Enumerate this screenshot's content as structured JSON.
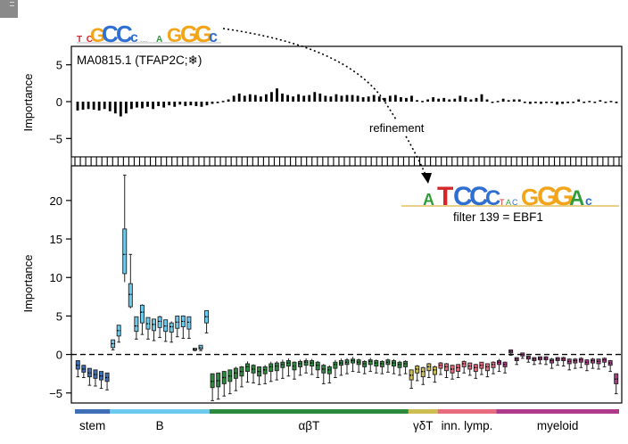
{
  "chart_data": [
    {
      "type": "box",
      "panel": "top",
      "title": "MA0815.1 (TFAP2C;",
      "title_symbol": "❄",
      "title_close": ")",
      "ylabel": "Importance",
      "ylim": [
        -7.5,
        7.5
      ],
      "yticks": [
        -5,
        0,
        5
      ],
      "values": [
        -1.2,
        -1.1,
        -1.0,
        -1.1,
        -1.2,
        -1.0,
        -1.3,
        -1.6,
        -2.0,
        -1.6,
        -1.0,
        -0.8,
        -0.9,
        -0.7,
        -1.0,
        -0.6,
        -0.8,
        -0.5,
        -0.7,
        -0.4,
        -0.6,
        -0.5,
        -0.6,
        -0.7,
        -0.5,
        -0.3,
        -0.2,
        0.1,
        0.3,
        0.8,
        1.1,
        0.8,
        1.0,
        0.9,
        0.7,
        1.0,
        1.3,
        1.8,
        1.1,
        0.9,
        0.7,
        1.0,
        0.8,
        0.9,
        1.3,
        1.1,
        0.8,
        0.7,
        1.0,
        0.8,
        0.9,
        0.9,
        0.8,
        0.6,
        0.7,
        0.9,
        0.7,
        0.5,
        0.8,
        0.9,
        0.6,
        0.5,
        0.8,
        0.2,
        0.1,
        0.3,
        0.6,
        0.4,
        0.5,
        0.3,
        0.4,
        0.8,
        0.6,
        0.3,
        0.5,
        1.0,
        0.3,
        0.0,
        0.1,
        0.4,
        0.2,
        0.3,
        0.3,
        -0.1,
        -0.3,
        -0.2,
        -0.3,
        -0.1,
        0.0,
        -0.4,
        -0.3,
        -0.2,
        0.0,
        0.3,
        0.0,
        0.1,
        0.0,
        0.2,
        -0.1,
        0.1,
        -0.2
      ]
    },
    {
      "type": "box",
      "panel": "bottom",
      "ylabel": "Importance",
      "ylim": [
        -6.3,
        24.5
      ],
      "yticks": [
        -5,
        0,
        5,
        10,
        15,
        20
      ],
      "baseline": 0,
      "groups": [
        {
          "name": "stem",
          "color": "#3f6fb6",
          "boxes": [
            [
              -1.4,
              -0.8,
              -1.9,
              -2.9
            ],
            [
              -1.9,
              -1.4,
              -2.3,
              -3.0
            ],
            [
              -2.4,
              -1.8,
              -2.9,
              -4.0
            ],
            [
              -2.6,
              -2.0,
              -3.1,
              -4.1
            ],
            [
              -2.8,
              -2.2,
              -3.3,
              -4.4
            ],
            [
              -3.0,
              -2.4,
              -3.5,
              -4.6
            ]
          ]
        },
        {
          "name": "B",
          "color": "#6ccbed",
          "boxes": [
            [
              1.4,
              1.9,
              0.9,
              0.6
            ],
            [
              3.1,
              3.8,
              2.4,
              1.6
            ],
            [
              13.0,
              16.3,
              10.5,
              23.3
            ],
            [
              7.8,
              9.2,
              6.2,
              13.0
            ],
            [
              3.7,
              4.9,
              3.0,
              2.0
            ],
            [
              5.5,
              6.4,
              4.1,
              2.6
            ],
            [
              4.0,
              4.8,
              3.3,
              2.0
            ],
            [
              3.9,
              4.6,
              3.1,
              1.8
            ],
            [
              4.3,
              4.9,
              3.5,
              2.2
            ],
            [
              3.7,
              4.5,
              3.0,
              1.7
            ],
            [
              3.6,
              4.1,
              2.9,
              1.6
            ],
            [
              4.2,
              5.0,
              3.4,
              2.3
            ],
            [
              4.3,
              5.0,
              3.6,
              2.1
            ],
            [
              4.2,
              4.9,
              3.3,
              2.1
            ],
            [
              0.7,
              0.8,
              0.6,
              0.5
            ],
            [
              0.9,
              1.2,
              0.7,
              0.5
            ],
            [
              4.9,
              5.7,
              4.1,
              2.8
            ]
          ]
        },
        {
          "name": "αβT",
          "color": "#2b8a3e",
          "boxes": [
            [
              -3.5,
              -2.5,
              -4.3,
              -6.0
            ],
            [
              -3.4,
              -2.4,
              -4.2,
              -5.8
            ],
            [
              -3.0,
              -2.2,
              -3.8,
              -5.4
            ],
            [
              -2.8,
              -2.0,
              -3.5,
              -5.1
            ],
            [
              -2.4,
              -1.8,
              -3.1,
              -4.7
            ],
            [
              -2.2,
              -1.6,
              -2.8,
              -4.2
            ],
            [
              -1.6,
              -1.2,
              -2.2,
              -3.6
            ],
            [
              -1.9,
              -1.4,
              -2.4,
              -3.7
            ],
            [
              -2.2,
              -1.6,
              -2.8,
              -3.9
            ],
            [
              -2.0,
              -1.6,
              -2.5,
              -3.8
            ],
            [
              -1.6,
              -1.2,
              -2.2,
              -3.5
            ],
            [
              -1.5,
              -1.1,
              -2.1,
              -3.3
            ],
            [
              -1.3,
              -1.0,
              -1.7,
              -3.1
            ],
            [
              -1.1,
              -0.8,
              -1.5,
              -2.8
            ],
            [
              -1.5,
              -1.0,
              -2.0,
              -3.2
            ],
            [
              -1.2,
              -0.9,
              -1.6,
              -2.7
            ],
            [
              -1.0,
              -0.8,
              -1.4,
              -2.4
            ],
            [
              -1.1,
              -0.8,
              -1.5,
              -2.6
            ],
            [
              -1.4,
              -1.0,
              -2.0,
              -3.0
            ],
            [
              -1.9,
              -1.4,
              -2.4,
              -3.8
            ],
            [
              -2.0,
              -1.6,
              -2.5,
              -3.7
            ],
            [
              -1.3,
              -1.0,
              -1.8,
              -3.0
            ],
            [
              -1.1,
              -0.8,
              -1.4,
              -2.7
            ],
            [
              -1.0,
              -0.7,
              -1.3,
              -2.5
            ],
            [
              -0.8,
              -0.6,
              -1.1,
              -2.2
            ],
            [
              -1.0,
              -0.7,
              -1.3,
              -2.3
            ],
            [
              -1.2,
              -0.9,
              -1.6,
              -2.5
            ],
            [
              -0.9,
              -0.7,
              -1.3,
              -2.2
            ],
            [
              -1.1,
              -0.8,
              -1.5,
              -2.4
            ],
            [
              -1.2,
              -0.9,
              -1.6,
              -2.5
            ],
            [
              -1.0,
              -0.7,
              -1.3,
              -2.3
            ],
            [
              -1.1,
              -0.8,
              -1.5,
              -2.5
            ],
            [
              -1.3,
              -1.0,
              -1.7,
              -2.7
            ],
            [
              -1.2,
              -0.9,
              -1.6,
              -2.5
            ]
          ]
        },
        {
          "name": "γδT",
          "color": "#cdbd52",
          "boxes": [
            [
              -2.7,
              -2.0,
              -3.3,
              -4.4
            ],
            [
              -1.9,
              -1.5,
              -2.4,
              -3.4
            ],
            [
              -2.2,
              -1.7,
              -2.9,
              -3.9
            ],
            [
              -1.6,
              -1.2,
              -2.1,
              -3.0
            ],
            [
              -2.0,
              -1.6,
              -2.6,
              -3.6
            ]
          ]
        },
        {
          "name": "inn. lymp.",
          "color": "#e96b7e",
          "boxes": [
            [
              -1.4,
              -1.1,
              -1.8,
              -2.6
            ],
            [
              -1.6,
              -1.2,
              -2.1,
              -3.0
            ],
            [
              -1.9,
              -1.4,
              -2.4,
              -3.2
            ],
            [
              -1.7,
              -1.3,
              -2.2,
              -3.0
            ],
            [
              -1.2,
              -0.9,
              -1.6,
              -2.4
            ],
            [
              -1.5,
              -1.1,
              -1.9,
              -2.7
            ],
            [
              -1.7,
              -1.3,
              -2.2,
              -3.1
            ],
            [
              -1.4,
              -1.0,
              -1.8,
              -2.6
            ],
            [
              -1.6,
              -1.2,
              -2.1,
              -2.9
            ],
            [
              -1.3,
              -1.0,
              -1.7,
              -2.5
            ]
          ]
        },
        {
          "name": "myeloid",
          "color": "#b03a8a",
          "boxes": [
            [
              -1.0,
              -0.8,
              -1.3,
              -2.2
            ],
            [
              -1.3,
              -1.0,
              -1.6,
              -2.4
            ],
            [
              0.4,
              0.6,
              0.2,
              -0.1
            ],
            [
              -0.6,
              -0.4,
              -0.8,
              -1.3
            ],
            [
              0.0,
              0.2,
              -0.2,
              -0.5
            ],
            [
              -0.4,
              -0.2,
              -0.6,
              -1.0
            ],
            [
              -0.6,
              -0.4,
              -0.8,
              -1.3
            ],
            [
              -0.5,
              -0.3,
              -0.7,
              -1.2
            ],
            [
              -0.5,
              -0.3,
              -0.7,
              -1.3
            ],
            [
              -0.8,
              -0.6,
              -1.1,
              -1.8
            ],
            [
              -0.6,
              -0.4,
              -0.8,
              -1.4
            ],
            [
              -0.6,
              -0.4,
              -0.8,
              -1.5
            ],
            [
              -0.9,
              -0.6,
              -1.2,
              -2.0
            ],
            [
              -0.8,
              -0.6,
              -1.1,
              -1.8
            ],
            [
              -0.7,
              -0.5,
              -1.0,
              -1.7
            ],
            [
              -1.0,
              -0.7,
              -1.3,
              -2.1
            ],
            [
              -0.8,
              -0.6,
              -1.1,
              -1.8
            ],
            [
              -0.9,
              -0.6,
              -1.2,
              -1.9
            ],
            [
              -0.7,
              -0.5,
              -1.0,
              -1.6
            ],
            [
              -1.1,
              -0.8,
              -1.4,
              -2.2
            ],
            [
              -3.2,
              -2.5,
              -3.8,
              -5.1
            ]
          ]
        }
      ]
    }
  ],
  "annotations": {
    "refinement": "refinement",
    "filter_label": "filter 139 = EBF1",
    "motif_top": "GCCc..GGGc",
    "motif_bottom": "ATCCC..GGGAc"
  },
  "colors": {
    "A": "#2e9e3b",
    "C": "#2f6fd1",
    "G": "#f2a51a",
    "T": "#d6262a",
    "axis": "#000000",
    "box_edge": "#222222"
  }
}
